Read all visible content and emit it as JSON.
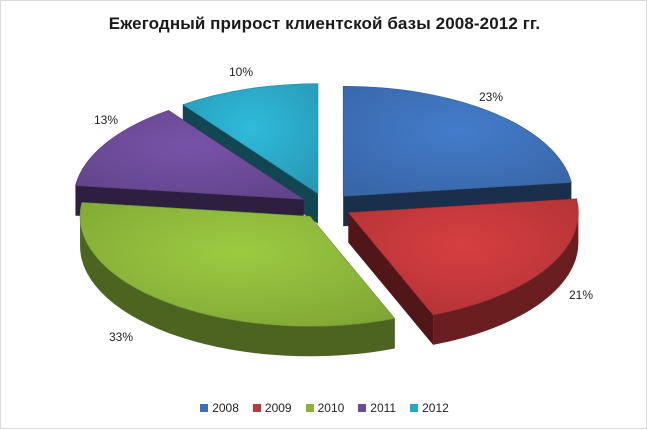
{
  "chart_data": {
    "type": "pie",
    "title": "Ежегодный прирост клиентской базы 2008-2012 гг.",
    "three_d": true,
    "exploded": true,
    "legend_position": "bottom",
    "categories": [
      "2008",
      "2009",
      "2010",
      "2011",
      "2012"
    ],
    "values": [
      23,
      21,
      33,
      13,
      10
    ],
    "data_labels": [
      "23%",
      "21%",
      "33%",
      "13%",
      "10%"
    ],
    "colors": [
      "#3d6fb6",
      "#c0373a",
      "#8bb53a",
      "#6b4a96",
      "#2aa6c4"
    ]
  }
}
